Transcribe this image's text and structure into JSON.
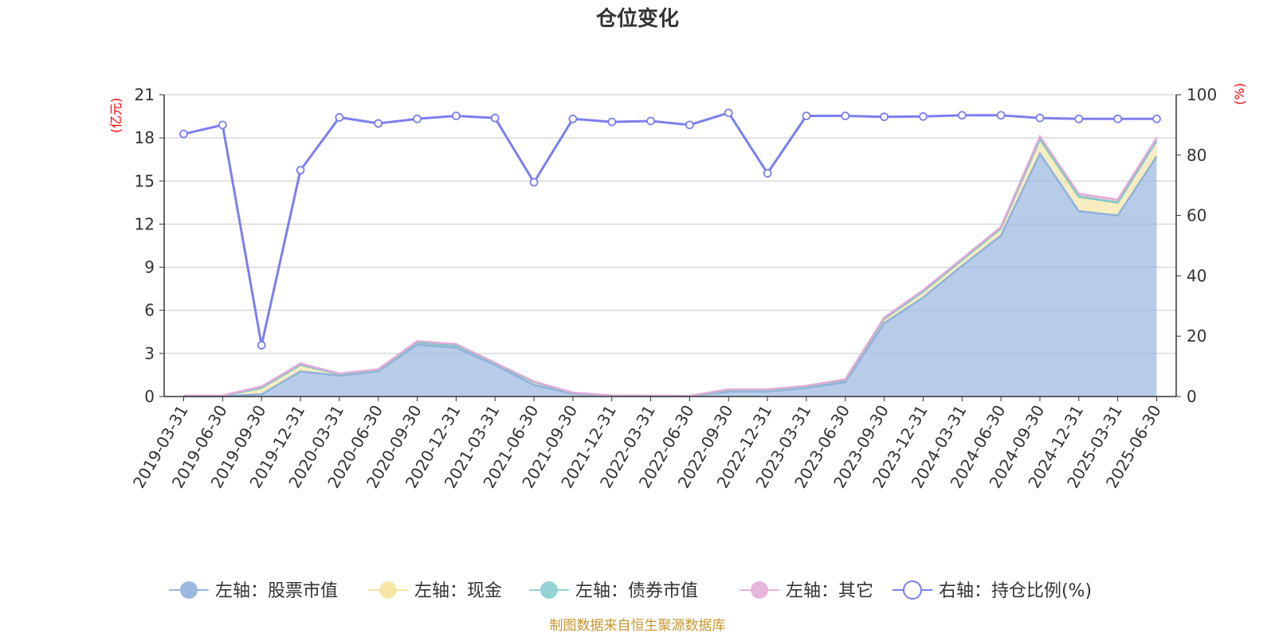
{
  "chart_data": {
    "type": "area",
    "title": "仓位变化",
    "left_axis_unit": "(亿元)",
    "right_axis_unit": "(%)",
    "left_ylim": [
      0,
      21
    ],
    "left_ticks": [
      0,
      3,
      6,
      9,
      12,
      15,
      18,
      21
    ],
    "right_ylim": [
      0,
      100
    ],
    "right_ticks": [
      0,
      20,
      40,
      60,
      80,
      100
    ],
    "grid": true,
    "legend_position": "bottom",
    "x": [
      "2019-03-31",
      "2019-06-30",
      "2019-09-30",
      "2019-12-31",
      "2020-03-31",
      "2020-06-30",
      "2020-09-30",
      "2020-12-31",
      "2021-03-31",
      "2021-06-30",
      "2021-09-30",
      "2021-12-31",
      "2022-03-31",
      "2022-06-30",
      "2022-09-30",
      "2022-12-31",
      "2023-03-31",
      "2023-06-30",
      "2023-09-30",
      "2023-12-31",
      "2024-03-31",
      "2024-06-30",
      "2024-09-30",
      "2024-12-31",
      "2025-03-31",
      "2025-06-30"
    ],
    "series": [
      {
        "name": "左轴：股票市值",
        "axis": "left",
        "type": "area",
        "color": "#9bb8e0",
        "values": [
          0.02,
          0.02,
          0.15,
          1.75,
          1.45,
          1.75,
          3.6,
          3.4,
          2.2,
          0.8,
          0.2,
          0.05,
          0.03,
          0.02,
          0.35,
          0.35,
          0.6,
          1.0,
          5.1,
          6.9,
          9.1,
          11.2,
          16.9,
          12.9,
          12.6,
          16.7
        ]
      },
      {
        "name": "左轴：现金",
        "axis": "left",
        "type": "area",
        "color": "#f5e6a8",
        "values": [
          0.03,
          0.03,
          0.45,
          0.45,
          0.1,
          0.1,
          0.15,
          0.15,
          0.1,
          0.2,
          0.05,
          0.02,
          0.02,
          0.02,
          0.1,
          0.1,
          0.1,
          0.15,
          0.3,
          0.4,
          0.4,
          0.5,
          1.0,
          1.0,
          0.9,
          1.1
        ]
      },
      {
        "name": "左轴：债券市值",
        "axis": "left",
        "type": "area",
        "color": "#93d3d3",
        "values": [
          0,
          0,
          0,
          0,
          0,
          0,
          0,
          0,
          0,
          0,
          0,
          0,
          0,
          0,
          0,
          0,
          0,
          0,
          0,
          0,
          0,
          0,
          0,
          0,
          0,
          0
        ]
      },
      {
        "name": "左轴：其它",
        "axis": "left",
        "type": "area",
        "color": "#e6b6da",
        "values": [
          0.02,
          0.02,
          0.1,
          0.1,
          0.05,
          0.05,
          0.1,
          0.1,
          0.05,
          0.05,
          0.02,
          0.01,
          0.01,
          0.01,
          0.05,
          0.05,
          0.05,
          0.05,
          0.1,
          0.1,
          0.1,
          0.1,
          0.2,
          0.2,
          0.2,
          0.2
        ]
      },
      {
        "name": "右轴：持仓比例(%)",
        "axis": "right",
        "type": "line",
        "color": "#7b7fef",
        "values": [
          87.0,
          90.0,
          17.0,
          75.0,
          92.5,
          90.5,
          92.0,
          93.0,
          92.3,
          71.0,
          92.0,
          91.0,
          91.3,
          90.0,
          94.0,
          74.0,
          93.0,
          93.0,
          92.7,
          92.8,
          93.2,
          93.2,
          92.3,
          92.0,
          92.0,
          92.0
        ]
      }
    ]
  },
  "footer": {
    "credit": "制图数据来自恒生聚源数据库"
  }
}
